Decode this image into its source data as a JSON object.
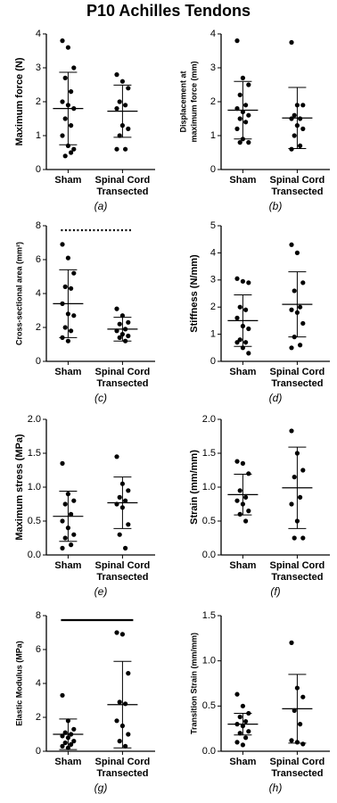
{
  "title": "P10 Achilles Tendons",
  "chart_data": [
    {
      "type": "dotplot",
      "caption": "(a)",
      "ylabel": [
        "Maximum force (N)"
      ],
      "ylim": [
        0,
        4
      ],
      "yticks": [
        0,
        1,
        2,
        3,
        4
      ],
      "groups": [
        {
          "name": [
            "Sham"
          ],
          "values": [
            3.8,
            3.6,
            3.0,
            2.7,
            2.3,
            2.0,
            1.9,
            1.8,
            1.5,
            1.3,
            1.0,
            0.7,
            0.6,
            0.4,
            0.5
          ],
          "mean": 1.8,
          "sd": 1.07
        },
        {
          "name": [
            "Spinal Cord",
            "Transected"
          ],
          "values": [
            2.8,
            2.6,
            2.4,
            2.0,
            1.9,
            1.8,
            1.3,
            1.2,
            1.0,
            0.6,
            0.6
          ],
          "mean": 1.72,
          "sd": 0.77
        }
      ]
    },
    {
      "type": "dotplot",
      "caption": "(b)",
      "ylabel": [
        "Displacement at",
        "maximum force (mm)"
      ],
      "ylim": [
        0,
        4
      ],
      "yticks": [
        0,
        1,
        2,
        3,
        4
      ],
      "groups": [
        {
          "name": [
            "Sham"
          ],
          "values": [
            3.8,
            2.7,
            2.5,
            2.2,
            1.9,
            1.8,
            1.7,
            1.6,
            1.5,
            1.4,
            1.2,
            0.9,
            0.8,
            0.8
          ],
          "mean": 1.75,
          "sd": 0.85
        },
        {
          "name": [
            "Spinal Cord",
            "Transected"
          ],
          "values": [
            3.75,
            1.9,
            1.9,
            1.6,
            1.5,
            1.5,
            1.3,
            1.2,
            1.0,
            0.7,
            0.6
          ],
          "mean": 1.52,
          "sd": 0.9
        }
      ]
    },
    {
      "type": "dotplot",
      "caption": "(c)",
      "ylabel": [
        "Cross-sectional area (mm²)"
      ],
      "ylim": [
        0,
        8
      ],
      "yticks": [
        0,
        2,
        4,
        6,
        8
      ],
      "significance": "dotted",
      "groups": [
        {
          "name": [
            "Sham"
          ],
          "values": [
            6.9,
            6.1,
            5.2,
            4.4,
            4.3,
            3.4,
            2.8,
            2.7,
            2.0,
            1.8,
            1.4,
            1.2
          ],
          "mean": 3.4,
          "sd": 2.0
        },
        {
          "name": [
            "Spinal Cord",
            "Transected"
          ],
          "values": [
            3.1,
            2.7,
            2.3,
            2.2,
            1.9,
            1.8,
            1.6,
            1.5,
            1.4,
            1.2
          ],
          "mean": 1.9,
          "sd": 0.7
        }
      ]
    },
    {
      "type": "dotplot",
      "caption": "(d)",
      "ylabel": [
        "Stiffness (N/mm)"
      ],
      "ylim": [
        0,
        5
      ],
      "yticks": [
        0,
        1,
        2,
        3,
        4,
        5
      ],
      "groups": [
        {
          "name": [
            "Sham"
          ],
          "values": [
            3.05,
            2.95,
            2.9,
            2.0,
            1.9,
            1.6,
            1.3,
            1.2,
            0.8,
            0.7,
            0.7,
            0.5,
            0.3
          ],
          "mean": 1.5,
          "sd": 0.95
        },
        {
          "name": [
            "Spinal Cord",
            "Transected"
          ],
          "values": [
            4.3,
            4.0,
            2.9,
            2.6,
            2.0,
            1.9,
            1.8,
            1.4,
            0.9,
            0.6,
            0.5
          ],
          "mean": 2.1,
          "sd": 1.2
        }
      ]
    },
    {
      "type": "dotplot",
      "caption": "(e)",
      "ylabel": [
        "Maximum stress (MPa)"
      ],
      "ylim": [
        0,
        2
      ],
      "yticks": [
        {
          "value": 0,
          "label": "0.0"
        },
        0.5,
        {
          "value": 1,
          "label": "1.0"
        },
        1.5,
        {
          "value": 2,
          "label": "2.0"
        }
      ],
      "groups": [
        {
          "name": [
            "Sham"
          ],
          "values": [
            1.35,
            0.9,
            0.8,
            0.75,
            0.6,
            0.5,
            0.4,
            0.3,
            0.25,
            0.15,
            0.1
          ],
          "mean": 0.57,
          "sd": 0.37
        },
        {
          "name": [
            "Spinal Cord",
            "Transected"
          ],
          "values": [
            1.45,
            1.05,
            0.95,
            0.85,
            0.8,
            0.75,
            0.7,
            0.45,
            0.3,
            0.1
          ],
          "mean": 0.77,
          "sd": 0.38
        }
      ]
    },
    {
      "type": "dotplot",
      "caption": "(f)",
      "ylabel": [
        "Strain (mm/mm)"
      ],
      "ylim": [
        0,
        2
      ],
      "yticks": [
        {
          "value": 0,
          "label": "0.0"
        },
        0.5,
        {
          "value": 1,
          "label": "1.0"
        },
        1.5,
        {
          "value": 2,
          "label": "2.0"
        }
      ],
      "groups": [
        {
          "name": [
            "Sham"
          ],
          "values": [
            1.38,
            1.35,
            1.2,
            0.95,
            0.85,
            0.8,
            0.75,
            0.65,
            0.6,
            0.5
          ],
          "mean": 0.89,
          "sd": 0.3
        },
        {
          "name": [
            "Spinal Cord",
            "Transected"
          ],
          "values": [
            1.83,
            1.5,
            1.25,
            1.15,
            0.85,
            0.75,
            0.5,
            0.25,
            0.25
          ],
          "mean": 0.99,
          "sd": 0.6
        }
      ]
    },
    {
      "type": "dotplot",
      "caption": "(g)",
      "ylabel": [
        "Elastic Modulus (MPa)"
      ],
      "ylim": [
        0,
        8
      ],
      "yticks": [
        0,
        2,
        4,
        6,
        8
      ],
      "significance": "solid",
      "groups": [
        {
          "name": [
            "Sham"
          ],
          "values": [
            3.3,
            1.8,
            1.3,
            1.1,
            1.0,
            0.9,
            0.8,
            0.6,
            0.5,
            0.4,
            0.3,
            0.2
          ],
          "mean": 1.0,
          "sd": 0.9
        },
        {
          "name": [
            "Spinal Cord",
            "Transected"
          ],
          "values": [
            7.0,
            6.9,
            4.6,
            2.9,
            2.8,
            1.8,
            1.5,
            1.0,
            0.6,
            0.3
          ],
          "mean": 2.75,
          "sd": 2.55
        }
      ]
    },
    {
      "type": "dotplot",
      "caption": "(h)",
      "ylabel": [
        "Transition Strain (mm/mm)"
      ],
      "ylim": [
        0,
        1.5
      ],
      "yticks": [
        {
          "value": 0,
          "label": "0.0"
        },
        0.5,
        {
          "value": 1,
          "label": "1.0"
        },
        1.5
      ],
      "groups": [
        {
          "name": [
            "Sham"
          ],
          "values": [
            0.63,
            0.5,
            0.42,
            0.38,
            0.33,
            0.3,
            0.28,
            0.22,
            0.2,
            0.15,
            0.1,
            0.07
          ],
          "mean": 0.3,
          "sd": 0.12
        },
        {
          "name": [
            "Spinal Cord",
            "Transected"
          ],
          "values": [
            1.2,
            0.7,
            0.6,
            0.45,
            0.3,
            0.12,
            0.1,
            0.08
          ],
          "mean": 0.47,
          "sd": 0.38
        }
      ]
    }
  ]
}
